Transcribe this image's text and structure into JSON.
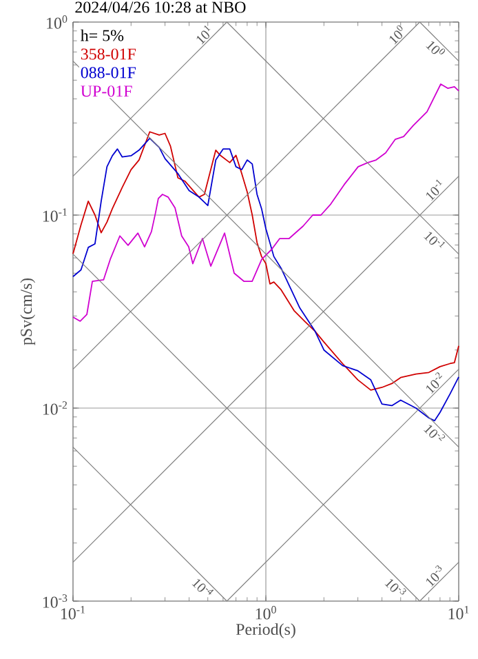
{
  "chart_data": {
    "type": "line",
    "title": "2024/04/26 10:28 at NBO",
    "xlabel": "Period(s)",
    "ylabel": "pSv(cm/s)",
    "legend_title": "h= 5%",
    "legend": "top left",
    "log": "xy",
    "grid": true,
    "xlim": [
      0.1,
      10
    ],
    "ylim": [
      0.001,
      1
    ],
    "xticks": [
      {
        "value": 0.1,
        "label": "10$^{-1}$"
      },
      {
        "value": 1,
        "label": "10$^{0}$"
      },
      {
        "value": 10,
        "label": "10$^{1}$"
      }
    ],
    "yticks": [
      {
        "value": 0.001,
        "label": "10$^{-3}$"
      },
      {
        "value": 0.01,
        "label": "10$^{-2}$"
      },
      {
        "value": 0.1,
        "label": "10$^{-1}$"
      },
      {
        "value": 1,
        "label": "10$^{0}$"
      }
    ],
    "series": [
      {
        "name": "358-01F",
        "color": "#d00000",
        "x": [
          0.1,
          0.11,
          0.12,
          0.13,
          0.14,
          0.15,
          0.16,
          0.18,
          0.2,
          0.22,
          0.25,
          0.28,
          0.3,
          0.32,
          0.35,
          0.38,
          0.42,
          0.45,
          0.48,
          0.5,
          0.55,
          0.58,
          0.65,
          0.7,
          0.75,
          0.8,
          0.85,
          0.9,
          0.95,
          1.0,
          1.05,
          1.1,
          1.2,
          1.4,
          1.6,
          1.8,
          2.0,
          2.5,
          3.0,
          3.5,
          4.0,
          4.5,
          5,
          6,
          7,
          8,
          9,
          9.5,
          10
        ],
        "values": [
          0.063,
          0.089,
          0.118,
          0.1,
          0.081,
          0.092,
          0.108,
          0.139,
          0.172,
          0.193,
          0.27,
          0.26,
          0.265,
          0.228,
          0.156,
          0.15,
          0.134,
          0.124,
          0.128,
          0.15,
          0.217,
          0.204,
          0.187,
          0.204,
          0.164,
          0.132,
          0.1,
          0.072,
          0.061,
          0.056,
          0.044,
          0.045,
          0.041,
          0.032,
          0.028,
          0.025,
          0.022,
          0.017,
          0.014,
          0.0124,
          0.0128,
          0.0134,
          0.0144,
          0.015,
          0.0153,
          0.0164,
          0.017,
          0.0172,
          0.021
        ]
      },
      {
        "name": "088-01F",
        "color": "#0000d0",
        "x": [
          0.1,
          0.11,
          0.12,
          0.13,
          0.14,
          0.15,
          0.16,
          0.17,
          0.18,
          0.2,
          0.22,
          0.25,
          0.28,
          0.3,
          0.35,
          0.4,
          0.45,
          0.5,
          0.55,
          0.6,
          0.65,
          0.7,
          0.75,
          0.8,
          0.85,
          0.9,
          0.95,
          1.0,
          1.1,
          1.2,
          1.5,
          1.8,
          2.0,
          2.5,
          3,
          3.5,
          4,
          4.5,
          5,
          6,
          7,
          7.5,
          8,
          9,
          10
        ],
        "values": [
          0.048,
          0.052,
          0.068,
          0.071,
          0.118,
          0.178,
          0.203,
          0.22,
          0.2,
          0.203,
          0.217,
          0.25,
          0.224,
          0.196,
          0.164,
          0.134,
          0.124,
          0.112,
          0.193,
          0.22,
          0.22,
          0.178,
          0.172,
          0.193,
          0.184,
          0.128,
          0.108,
          0.085,
          0.061,
          0.053,
          0.033,
          0.025,
          0.02,
          0.0166,
          0.0156,
          0.014,
          0.0105,
          0.0103,
          0.011,
          0.01,
          0.0089,
          0.0086,
          0.0095,
          0.0118,
          0.0145
        ]
      },
      {
        "name": "UP-01F",
        "color": "#d000d0",
        "x": [
          0.1,
          0.109,
          0.118,
          0.126,
          0.144,
          0.156,
          0.175,
          0.193,
          0.217,
          0.235,
          0.255,
          0.268,
          0.277,
          0.291,
          0.311,
          0.338,
          0.366,
          0.398,
          0.418,
          0.469,
          0.518,
          0.611,
          0.685,
          0.769,
          0.849,
          0.952,
          1.07,
          1.18,
          1.32,
          1.56,
          1.75,
          1.93,
          2.17,
          2.55,
          3.01,
          3.38,
          3.73,
          4.18,
          4.69,
          5.18,
          5.81,
          6.85,
          8.07,
          8.77,
          9.5,
          10
        ],
        "values": [
          0.0296,
          0.0282,
          0.0306,
          0.0454,
          0.0462,
          0.059,
          0.078,
          0.0697,
          0.0807,
          0.0685,
          0.082,
          0.103,
          0.122,
          0.128,
          0.124,
          0.109,
          0.078,
          0.0685,
          0.056,
          0.0756,
          0.0544,
          0.0807,
          0.05,
          0.0454,
          0.0454,
          0.059,
          0.0663,
          0.0756,
          0.0756,
          0.0877,
          0.1,
          0.1,
          0.114,
          0.144,
          0.178,
          0.187,
          0.193,
          0.21,
          0.247,
          0.255,
          0.291,
          0.343,
          0.477,
          0.454,
          0.462,
          0.44
        ]
      },
      {
        "name": "10$^{1}$",
        "color": "#808080",
        "x": [
          0.1,
          0.628
        ],
        "values": [
          0.159,
          1
        ]
      },
      {
        "name": "10$^{0}$",
        "color": "#808080",
        "x": [
          0.1,
          6.28
        ],
        "values": [
          0.0159,
          1
        ]
      },
      {
        "name": "10$^{-1}$",
        "color": "#808080",
        "x": [
          0.1,
          10
        ],
        "values": [
          0.00159,
          0.159
        ]
      },
      {
        "name": "10$^{-2}$",
        "color": "#808080",
        "x": [
          0.628,
          10
        ],
        "values": [
          0.001,
          0.0159
        ]
      },
      {
        "name": "10$^{-3}$",
        "color": "#808080",
        "x": [
          6.28,
          10
        ],
        "values": [
          0.001,
          0.00159
        ]
      },
      {
        "name": "10$^{0}$",
        "color": "#808080",
        "x": [
          6.28,
          10
        ],
        "values": [
          1,
          0.628
        ]
      },
      {
        "name": "10$^{-1}$",
        "color": "#808080",
        "x": [
          0.628,
          10
        ],
        "values": [
          1,
          0.0628
        ]
      },
      {
        "name": "10$^{-2}$",
        "color": "#808080",
        "x": [
          0.1,
          10
        ],
        "values": [
          0.628,
          0.00628
        ]
      },
      {
        "name": "10$^{-3}$",
        "color": "#808080",
        "x": [
          0.1,
          6.28
        ],
        "values": [
          0.0628,
          0.001
        ]
      },
      {
        "name": "10$^{-4}$",
        "color": "#808080",
        "x": [
          0.1,
          0.628
        ],
        "values": [
          0.00628,
          0.001
        ]
      }
    ]
  }
}
